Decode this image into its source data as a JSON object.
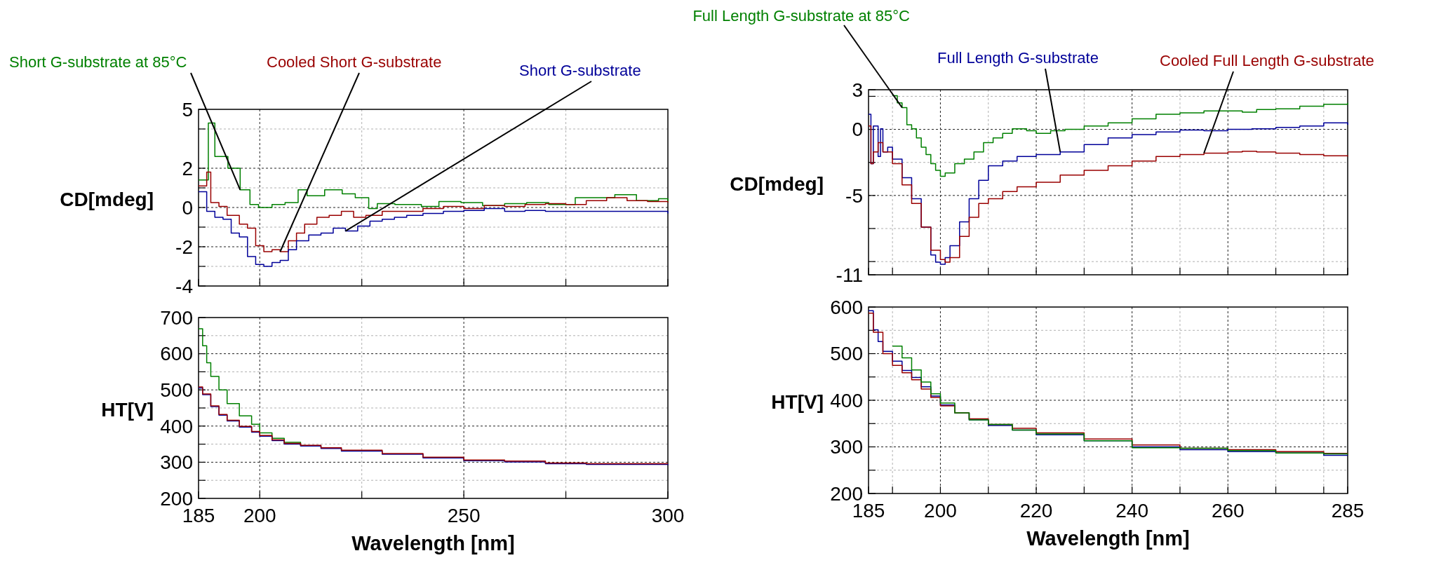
{
  "chart_data": [
    {
      "type": "step",
      "ylabel": "CD[mdeg]",
      "xlim": [
        185,
        300
      ],
      "xticks": [
        185,
        200,
        {
          "value": 225,
          "label": null
        },
        250,
        {
          "value": 275,
          "label": null
        },
        300
      ],
      "ylim": [
        -4,
        5
      ],
      "yticks": [
        -4,
        {
          "value": -3,
          "label": null
        },
        -2,
        {
          "value": -1,
          "label": null
        },
        0,
        {
          "value": 1,
          "label": null
        },
        2,
        {
          "value": 4,
          "label": null
        },
        5
      ],
      "tick_labels": "y",
      "grid": true,
      "series": [
        {
          "name": "Short G-substrate at 85°C",
          "color": "#008000",
          "x": [
            185,
            187.4,
            189,
            192.2,
            195.2,
            197.6,
            199.7,
            203,
            206.2,
            209.4,
            211.6,
            215.9,
            220.2,
            223.4,
            226.7,
            228.8,
            233.1,
            239.6,
            243.9,
            249.3,
            254.6,
            260,
            265.4,
            270.8,
            277.3,
            282.6,
            287,
            292.3,
            297.7,
            300
          ],
          "values": [
            1.4,
            4.3,
            2.6,
            2.0,
            0.9,
            0.15,
            0,
            0.15,
            0.25,
            0.9,
            0.6,
            0.9,
            0.7,
            0.5,
            -0.05,
            0.2,
            0.15,
            0.05,
            0.3,
            0.25,
            0.1,
            0.2,
            0.25,
            0.15,
            0.5,
            0.5,
            0.65,
            0.35,
            0.45,
            0.25
          ]
        },
        {
          "name": "Cooled Short G-substrate",
          "color": "#990000",
          "x": [
            185,
            187,
            188,
            190,
            192,
            195,
            197,
            199,
            201,
            203,
            205,
            207,
            209,
            211,
            214,
            217,
            220,
            223,
            226,
            230,
            235,
            240,
            245,
            250,
            255,
            260,
            265,
            270,
            275,
            280,
            285,
            290,
            295,
            300
          ],
          "values": [
            1.1,
            1.8,
            0.25,
            0.05,
            -0.4,
            -0.85,
            -1.05,
            -1.95,
            -2.25,
            -2.15,
            -2.25,
            -1.7,
            -1.3,
            -0.85,
            -0.5,
            -0.4,
            -0.2,
            -0.5,
            -0.4,
            -0.2,
            -0.2,
            -0.05,
            0.05,
            -0.05,
            0.1,
            0.05,
            0.15,
            0.2,
            0.15,
            0.35,
            0.5,
            0.35,
            0.3,
            0.25
          ]
        },
        {
          "name": "Short G-substrate",
          "color": "#000099",
          "x": [
            185,
            187,
            189,
            191,
            193,
            195,
            197,
            199,
            201,
            203,
            205,
            207,
            209,
            212,
            215,
            218,
            221,
            224,
            227,
            230,
            233,
            236,
            240,
            245,
            250,
            255,
            260,
            265,
            270,
            280,
            290,
            300
          ],
          "values": [
            0.8,
            -0.2,
            -0.5,
            -0.6,
            -1.3,
            -1.5,
            -2.5,
            -2.9,
            -3.0,
            -2.8,
            -2.7,
            -2.15,
            -1.7,
            -1.4,
            -1.3,
            -1.05,
            -1.2,
            -0.95,
            -0.7,
            -0.6,
            -0.5,
            -0.4,
            -0.3,
            -0.2,
            -0.15,
            -0.05,
            -0.2,
            -0.15,
            -0.2,
            -0.2,
            -0.2,
            -0.3
          ]
        }
      ]
    },
    {
      "type": "step",
      "ylabel": "HT[V]",
      "xlabel": "Wavelength [nm]",
      "xlim": [
        185,
        300
      ],
      "xticks": [
        185,
        200,
        {
          "value": 225,
          "label": null
        },
        250,
        {
          "value": 275,
          "label": null
        },
        300
      ],
      "ylim": [
        200,
        700
      ],
      "yticks": [
        200,
        {
          "value": 250,
          "label": null
        },
        300,
        {
          "value": 350,
          "label": null
        },
        400,
        {
          "value": 450,
          "label": null
        },
        500,
        {
          "value": 550,
          "label": null
        },
        600,
        {
          "value": 650,
          "label": null
        },
        700
      ],
      "grid": true,
      "series": [
        {
          "color": "#008000",
          "x": [
            185,
            186,
            187,
            188,
            190,
            192,
            195,
            198,
            200,
            203,
            206,
            210
          ],
          "values": [
            669,
            622,
            575,
            537,
            500,
            462,
            428,
            405,
            381,
            366,
            355,
            347
          ]
        },
        {
          "color": "#000099",
          "x": [
            185,
            186,
            188,
            190,
            192,
            195,
            198,
            200,
            203,
            206,
            210,
            215,
            220,
            230,
            240,
            250,
            260,
            270,
            280,
            290,
            300
          ],
          "values": [
            505,
            487,
            454,
            430,
            414,
            397,
            383,
            372,
            360,
            350,
            345,
            338,
            331,
            322,
            312,
            304,
            301,
            296,
            294,
            294,
            292
          ]
        },
        {
          "color": "#990000",
          "x": [
            185,
            186,
            188,
            190,
            192,
            195,
            198,
            200,
            203,
            206,
            210,
            215,
            220,
            230,
            240,
            250,
            260,
            270,
            280,
            290,
            300
          ],
          "values": [
            508,
            489,
            456,
            432,
            416,
            399,
            385,
            374,
            362,
            352,
            347,
            340,
            333,
            324,
            314,
            306,
            303,
            298,
            296,
            296,
            296
          ]
        }
      ]
    },
    {
      "type": "step",
      "ylabel": "CD[mdeg]",
      "xlim": [
        185,
        285
      ],
      "xticks": [
        185,
        {
          "value": 190,
          "label": null
        },
        200,
        {
          "value": 210,
          "label": null
        },
        220,
        {
          "value": 230,
          "label": null
        },
        240,
        {
          "value": 250,
          "label": null
        },
        260,
        {
          "value": 270,
          "label": null
        },
        {
          "value": 280,
          "label": null
        },
        285
      ],
      "ylim": [
        -11,
        3
      ],
      "yticks": [
        -11,
        {
          "value": -10,
          "label": null
        },
        {
          "value": -7.5,
          "label": null
        },
        -5,
        {
          "value": -2.5,
          "label": null
        },
        0,
        {
          "value": 2.5,
          "label": null
        },
        3
      ],
      "tick_labels": "y",
      "grid": true,
      "series": [
        {
          "name": "Full Length G-substrate at 85°C",
          "color": "#008000",
          "x": [
            190,
            191,
            192,
            193,
            194,
            195,
            196,
            197,
            198,
            199,
            200,
            201,
            203,
            205,
            207,
            209,
            211,
            213,
            215,
            218,
            220,
            223,
            226,
            230,
            235,
            240,
            245,
            250,
            255,
            260,
            263,
            266,
            270,
            275,
            280,
            285
          ],
          "values": [
            2.55,
            2.0,
            1.65,
            0.35,
            0.05,
            -0.65,
            -1.35,
            -1.9,
            -2.6,
            -3.1,
            -3.55,
            -3.3,
            -2.6,
            -2.25,
            -1.7,
            -1.0,
            -0.65,
            -0.3,
            0.05,
            -0.1,
            -0.3,
            -0.1,
            0,
            0.25,
            0.5,
            0.8,
            1.15,
            1.25,
            1.4,
            1.4,
            1.3,
            1.5,
            1.55,
            1.75,
            1.9,
            2.0
          ]
        },
        {
          "name": "Full Length G-substrate",
          "color": "#000099",
          "x": [
            185,
            185.5,
            186,
            187,
            187.5,
            188,
            189,
            190,
            192,
            194,
            196,
            198,
            199,
            200,
            201,
            202,
            204,
            206,
            208,
            210,
            213,
            216,
            220,
            225,
            230,
            235,
            240,
            245,
            250,
            255,
            260,
            265,
            270,
            275,
            280,
            285
          ],
          "values": [
            1.15,
            -2.6,
            0.25,
            -2.05,
            0.05,
            -1.7,
            -1.35,
            -2.25,
            -3.65,
            -5.25,
            -7.4,
            -9.5,
            -10.05,
            -10.2,
            -9.7,
            -8.8,
            -7.0,
            -5.25,
            -3.85,
            -2.75,
            -2.4,
            -2.05,
            -1.9,
            -1.7,
            -1.15,
            -0.65,
            -0.4,
            -0.2,
            -0.05,
            -0.1,
            0,
            0.05,
            0.15,
            0.25,
            0.5,
            0.35
          ]
        },
        {
          "name": "Cooled Full Length G-substrate",
          "color": "#990000",
          "x": [
            185,
            185.5,
            186,
            187,
            188,
            190,
            192,
            194,
            196,
            198,
            200,
            201,
            202,
            204,
            206,
            208,
            210,
            213,
            216,
            220,
            225,
            230,
            235,
            240,
            245,
            250,
            255,
            260,
            263,
            266,
            270,
            275,
            280,
            285
          ],
          "values": [
            0.25,
            -2.6,
            -1.7,
            -1.0,
            -1.7,
            -2.6,
            -4.2,
            -5.6,
            -7.4,
            -9.15,
            -9.85,
            -10.05,
            -9.7,
            -8.1,
            -6.65,
            -5.6,
            -5.25,
            -4.7,
            -4.35,
            -4.0,
            -3.45,
            -3.1,
            -2.75,
            -2.4,
            -2.05,
            -1.9,
            -1.8,
            -1.7,
            -1.65,
            -1.7,
            -1.8,
            -1.9,
            -2.0,
            -2.05
          ]
        }
      ]
    },
    {
      "type": "step",
      "ylabel": "HT[V]",
      "xlabel": "Wavelength [nm]",
      "xlim": [
        185,
        285
      ],
      "xticks": [
        185,
        {
          "value": 190,
          "label": null
        },
        200,
        {
          "value": 210,
          "label": null
        },
        220,
        {
          "value": 230,
          "label": null
        },
        240,
        {
          "value": 250,
          "label": null
        },
        260,
        {
          "value": 270,
          "label": null
        },
        {
          "value": 280,
          "label": null
        },
        285
      ],
      "ylim": [
        200,
        600
      ],
      "yticks": [
        200,
        {
          "value": 250,
          "label": null
        },
        300,
        {
          "value": 350,
          "label": null
        },
        400,
        {
          "value": 450,
          "label": null
        },
        500,
        {
          "value": 550,
          "label": null
        },
        600
      ],
      "grid": true,
      "series": [
        {
          "color": "#000099",
          "x": [
            185,
            186,
            187,
            188,
            190,
            192,
            194,
            196,
            198,
            200,
            203,
            206,
            210,
            215,
            220,
            230,
            240,
            250,
            260,
            270,
            280,
            285
          ],
          "values": [
            592,
            551,
            526,
            505,
            484,
            464,
            449,
            429,
            409,
            390,
            373,
            358,
            346,
            336,
            326,
            313,
            300,
            294,
            290,
            287,
            282,
            282
          ]
        },
        {
          "color": "#990000",
          "x": [
            185,
            186,
            188,
            190,
            192,
            194,
            196,
            198,
            200,
            203,
            206,
            210,
            215,
            220,
            230,
            240,
            250,
            260,
            270,
            280,
            285
          ],
          "values": [
            587,
            546,
            500,
            475,
            459,
            444,
            424,
            406,
            388,
            373,
            360,
            348,
            340,
            330,
            317,
            304,
            297,
            294,
            290,
            286,
            285
          ]
        },
        {
          "color": "#008000",
          "x": [
            190,
            192,
            194,
            196,
            198,
            200,
            203,
            206,
            210,
            215,
            220,
            230,
            240,
            250,
            260,
            270,
            280,
            285
          ],
          "values": [
            516,
            491,
            465,
            439,
            414,
            394,
            373,
            358,
            348,
            336,
            328,
            313,
            298,
            297,
            292,
            287,
            285,
            284
          ]
        }
      ]
    }
  ]
}
